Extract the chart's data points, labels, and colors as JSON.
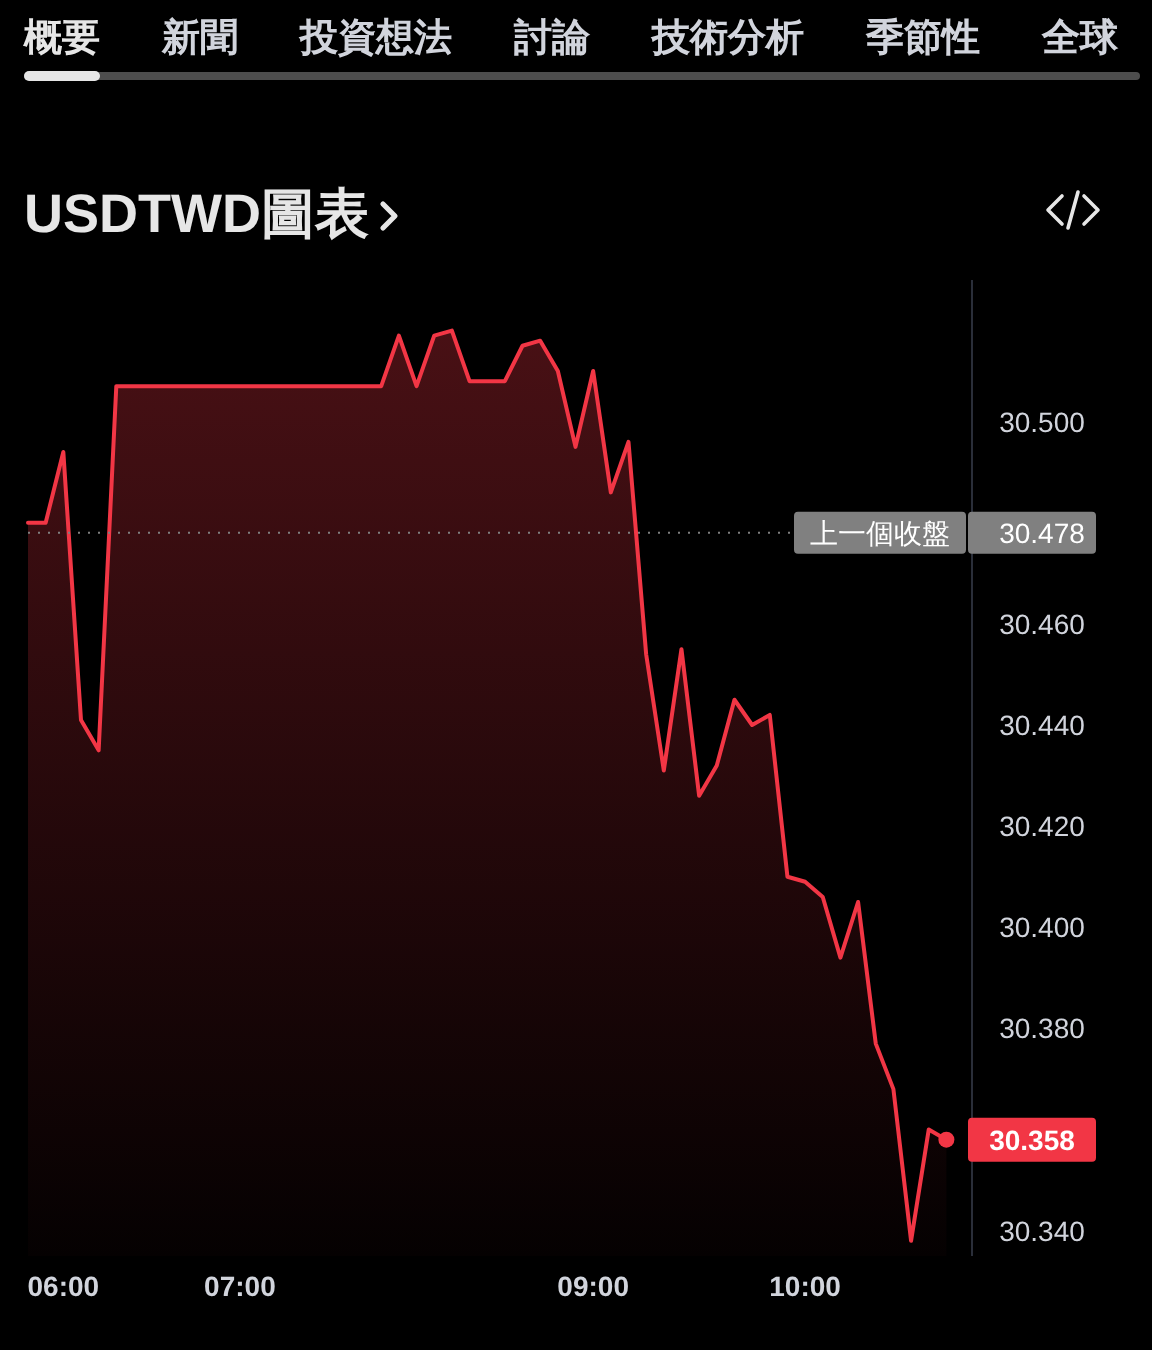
{
  "chart_data": {
    "type": "area",
    "title": "USDTWD圖表",
    "annotations": [
      "概要",
      "新聞",
      "投資想法",
      "討論",
      "技術分析",
      "季節性",
      "全球"
    ],
    "categories": [
      null,
      null,
      "06:00",
      null,
      null,
      null,
      null,
      null,
      null,
      null,
      null,
      null,
      "07:00",
      null,
      null,
      null,
      null,
      null,
      null,
      null,
      null,
      null,
      null,
      null,
      null,
      null,
      null,
      null,
      null,
      null,
      null,
      null,
      "09:00",
      null,
      null,
      null,
      null,
      null,
      null,
      null,
      null,
      null,
      null,
      null,
      "10:00",
      null,
      null,
      null,
      null,
      null,
      null,
      null,
      null
    ],
    "series": [
      {
        "color": "#f23645",
        "values": [
          30.48,
          30.48,
          30.494,
          30.441,
          30.435,
          30.507,
          30.507,
          30.507,
          30.507,
          30.507,
          30.507,
          30.507,
          30.507,
          30.507,
          30.507,
          30.507,
          30.507,
          30.507,
          30.507,
          30.507,
          30.507,
          30.517,
          30.507,
          30.517,
          30.518,
          30.508,
          30.508,
          30.508,
          30.515,
          30.516,
          30.51,
          30.495,
          30.51,
          30.486,
          30.496,
          30.454,
          30.431,
          30.455,
          30.426,
          30.432,
          30.445,
          30.44,
          30.442,
          30.41,
          30.409,
          30.406,
          30.394,
          30.405,
          30.377,
          30.368,
          30.338,
          30.36,
          30.358
        ]
      },
      {
        "type": "scatter",
        "color": "#f23645",
        "marker": "circle",
        "values": [
          null,
          null,
          null,
          null,
          null,
          null,
          null,
          null,
          null,
          null,
          null,
          null,
          null,
          null,
          null,
          null,
          null,
          null,
          null,
          null,
          null,
          null,
          null,
          null,
          null,
          null,
          null,
          null,
          null,
          null,
          null,
          null,
          null,
          null,
          null,
          null,
          null,
          null,
          null,
          null,
          null,
          null,
          null,
          null,
          null,
          null,
          null,
          null,
          null,
          null,
          null,
          null,
          30.358
        ],
        "value_labels": [
          null,
          null,
          null,
          null,
          null,
          null,
          null,
          null,
          null,
          null,
          null,
          null,
          null,
          null,
          null,
          null,
          null,
          null,
          null,
          null,
          null,
          null,
          null,
          null,
          null,
          null,
          null,
          null,
          null,
          null,
          null,
          null,
          null,
          null,
          null,
          null,
          null,
          null,
          null,
          null,
          null,
          null,
          null,
          null,
          null,
          null,
          null,
          null,
          null,
          null,
          null,
          null,
          "30.358"
        ]
      }
    ],
    "ylim": [
      30.335,
      30.528
    ],
    "yticks": [
      {
        "value": 30.34,
        "label": "30.340"
      },
      {
        "value": 30.38,
        "label": "30.380"
      },
      {
        "value": 30.4,
        "label": "30.400"
      },
      {
        "value": 30.42,
        "label": "30.420"
      },
      {
        "value": 30.44,
        "label": "30.440"
      },
      {
        "value": 30.46,
        "label": "30.460"
      },
      {
        "value": 30.478,
        "label": "30.478"
      },
      {
        "value": 30.5,
        "label": "30.500"
      }
    ],
    "ref_lines": [
      {
        "axis": "y",
        "value": 30.478,
        "label": "上一個收盤",
        "color": "#808080",
        "line_style": "dotted"
      }
    ]
  }
}
